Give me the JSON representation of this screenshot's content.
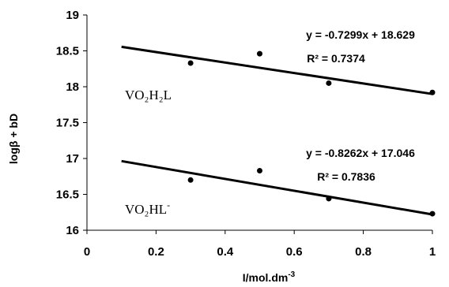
{
  "chart_data": {
    "type": "scatter",
    "xlabel": "I/mol.dm",
    "xlabel_sup": "-3",
    "ylabel": "logβ + bD",
    "xlim": [
      0,
      1
    ],
    "ylim": [
      16,
      19
    ],
    "x_ticks": [
      "0",
      "0.2",
      "0.4",
      "0.6",
      "0.8",
      "1"
    ],
    "y_ticks": [
      "16",
      "16.5",
      "17",
      "17.5",
      "18",
      "18.5",
      "19"
    ],
    "grid": false,
    "series": [
      {
        "label_main": "VO₂H₂L",
        "label_sup": "",
        "points": [
          {
            "x": 0.3,
            "y": 18.33
          },
          {
            "x": 0.5,
            "y": 18.46
          },
          {
            "x": 0.7,
            "y": 18.05
          },
          {
            "x": 1.0,
            "y": 17.92
          }
        ],
        "trendline": {
          "slope": -0.7299,
          "intercept": 18.629,
          "x_start": 0.1,
          "x_end": 1.0
        },
        "equation": "y = -0.7299x + 18.629",
        "r2": "R² = 0.7374"
      },
      {
        "label_main": "VO₂HL",
        "label_sup": "-",
        "points": [
          {
            "x": 0.3,
            "y": 16.7
          },
          {
            "x": 0.5,
            "y": 16.83
          },
          {
            "x": 0.7,
            "y": 16.44
          },
          {
            "x": 1.0,
            "y": 16.23
          }
        ],
        "trendline": {
          "slope": -0.8262,
          "intercept": 17.046,
          "x_start": 0.1,
          "x_end": 1.0
        },
        "equation": "y = -0.8262x + 17.046",
        "r2": "R² = 0.7836"
      }
    ]
  }
}
